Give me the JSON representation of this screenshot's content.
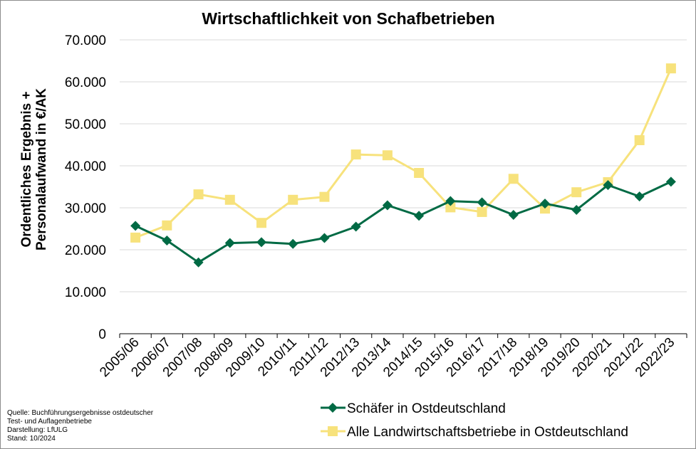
{
  "chart_data": {
    "type": "line",
    "title": "Wirtschaftlichkeit von Schafbetrieben",
    "ylabel_lines": [
      "Ordentliches Ergebnis +",
      "Personalaufwand in €/AK"
    ],
    "xlabel": "",
    "categories": [
      "2005/06",
      "2006/07",
      "2007/08",
      "2008/09",
      "2009/10",
      "2010/11",
      "2011/12",
      "2012/13",
      "2013/14",
      "2014/15",
      "2015/16",
      "2016/17",
      "2017/18",
      "2018/19",
      "2019/20",
      "2020/21",
      "2021/22",
      "2022/23"
    ],
    "ylim": [
      0,
      70000
    ],
    "yticks": [
      0,
      10000,
      20000,
      30000,
      40000,
      50000,
      60000,
      70000
    ],
    "ytick_labels": [
      "0",
      "10.000",
      "20.000",
      "30.000",
      "40.000",
      "50.000",
      "60.000",
      "70.000"
    ],
    "grid": "horizontal",
    "legend_position": "bottom-right",
    "series": [
      {
        "name": "Schäfer in Ostdeutschland",
        "color": "#006a44",
        "marker": "diamond",
        "values": [
          25700,
          22200,
          17000,
          21600,
          21800,
          21400,
          22800,
          25500,
          30600,
          28100,
          31600,
          31300,
          28300,
          31000,
          29500,
          35400,
          32700,
          36200
        ]
      },
      {
        "name": "Alle Landwirtschaftsbetriebe in Ostdeutschland",
        "color": "#f7e27c",
        "marker": "square",
        "values": [
          22900,
          25800,
          33200,
          31900,
          26400,
          31900,
          32600,
          42700,
          42500,
          38300,
          30100,
          29000,
          36900,
          29800,
          33700,
          36100,
          46100,
          63200
        ]
      }
    ]
  },
  "source_lines": [
    "Quelle: Buchführungsergebnisse ostdeutscher",
    "Test- und Auflagenbetriebe",
    "Darstellung: LfULG",
    "Stand: 10/2024"
  ]
}
